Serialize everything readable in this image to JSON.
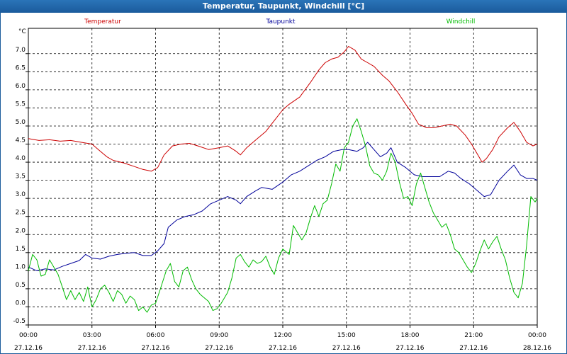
{
  "window": {
    "title": "Temperatur, Taupunkt, Windchill [°C]"
  },
  "chart_data": {
    "type": "line",
    "title": "Temperatur, Taupunkt, Windchill [°C]",
    "ylabel": "°C",
    "ylim": [
      -0.5,
      7.7
    ],
    "y_ticks": [
      "-0.5",
      "0.0",
      "0.5",
      "1.0",
      "1.5",
      "2.0",
      "2.5",
      "3.0",
      "3.5",
      "4.0",
      "4.5",
      "5.0",
      "5.5",
      "6.0",
      "6.5",
      "7.0"
    ],
    "xlim_hours": [
      0,
      24
    ],
    "x_ticks": [
      {
        "time": "00:00",
        "date": "27.12.16"
      },
      {
        "time": "03:00",
        "date": "27.12.16"
      },
      {
        "time": "06:00",
        "date": "27.12.16"
      },
      {
        "time": "09:00",
        "date": "27.12.16"
      },
      {
        "time": "12:00",
        "date": "27.12.16"
      },
      {
        "time": "15:00",
        "date": "27.12.16"
      },
      {
        "time": "18:00",
        "date": "27.12.16"
      },
      {
        "time": "21:00",
        "date": "27.12.16"
      },
      {
        "time": "00:00",
        "date": "28.12.16"
      }
    ],
    "grid": true,
    "legend_position": "top",
    "series": [
      {
        "name": "Temperatur",
        "color": "#cc0000",
        "points": [
          [
            0,
            4.65
          ],
          [
            0.5,
            4.6
          ],
          [
            1,
            4.62
          ],
          [
            1.5,
            4.58
          ],
          [
            2,
            4.6
          ],
          [
            2.5,
            4.55
          ],
          [
            3,
            4.5
          ],
          [
            3.3,
            4.35
          ],
          [
            3.7,
            4.15
          ],
          [
            4,
            4.05
          ],
          [
            4.5,
            3.98
          ],
          [
            5,
            3.88
          ],
          [
            5.4,
            3.8
          ],
          [
            5.8,
            3.75
          ],
          [
            6.1,
            3.85
          ],
          [
            6.4,
            4.2
          ],
          [
            6.8,
            4.45
          ],
          [
            7.2,
            4.5
          ],
          [
            7.6,
            4.52
          ],
          [
            8,
            4.45
          ],
          [
            8.5,
            4.35
          ],
          [
            9,
            4.4
          ],
          [
            9.4,
            4.45
          ],
          [
            9.8,
            4.3
          ],
          [
            10,
            4.2
          ],
          [
            10.3,
            4.4
          ],
          [
            10.8,
            4.65
          ],
          [
            11.2,
            4.85
          ],
          [
            11.6,
            5.15
          ],
          [
            12,
            5.45
          ],
          [
            12.3,
            5.6
          ],
          [
            12.8,
            5.8
          ],
          [
            13.3,
            6.2
          ],
          [
            13.7,
            6.55
          ],
          [
            14,
            6.75
          ],
          [
            14.3,
            6.85
          ],
          [
            14.6,
            6.9
          ],
          [
            14.9,
            7.05
          ],
          [
            15.1,
            7.2
          ],
          [
            15.4,
            7.1
          ],
          [
            15.7,
            6.85
          ],
          [
            16,
            6.75
          ],
          [
            16.3,
            6.65
          ],
          [
            16.7,
            6.4
          ],
          [
            17,
            6.25
          ],
          [
            17.4,
            5.95
          ],
          [
            17.8,
            5.6
          ],
          [
            18.1,
            5.35
          ],
          [
            18.4,
            5.05
          ],
          [
            18.8,
            4.95
          ],
          [
            19.1,
            4.95
          ],
          [
            19.5,
            5.0
          ],
          [
            19.9,
            5.05
          ],
          [
            20.2,
            5.0
          ],
          [
            20.6,
            4.75
          ],
          [
            20.9,
            4.5
          ],
          [
            21.2,
            4.2
          ],
          [
            21.4,
            4.0
          ],
          [
            21.6,
            4.1
          ],
          [
            21.9,
            4.35
          ],
          [
            22.2,
            4.7
          ],
          [
            22.6,
            4.95
          ],
          [
            22.9,
            5.1
          ],
          [
            23.2,
            4.85
          ],
          [
            23.5,
            4.55
          ],
          [
            23.8,
            4.45
          ],
          [
            24,
            4.5
          ]
        ]
      },
      {
        "name": "Taupunkt",
        "color": "#000099",
        "points": [
          [
            0,
            1.1
          ],
          [
            0.4,
            1.0
          ],
          [
            0.8,
            1.05
          ],
          [
            1.2,
            1.02
          ],
          [
            1.6,
            1.12
          ],
          [
            2,
            1.2
          ],
          [
            2.4,
            1.28
          ],
          [
            2.7,
            1.45
          ],
          [
            3,
            1.35
          ],
          [
            3.4,
            1.32
          ],
          [
            3.8,
            1.4
          ],
          [
            4.2,
            1.45
          ],
          [
            4.6,
            1.48
          ],
          [
            5,
            1.5
          ],
          [
            5.4,
            1.42
          ],
          [
            5.8,
            1.42
          ],
          [
            6.1,
            1.55
          ],
          [
            6.4,
            1.75
          ],
          [
            6.6,
            2.2
          ],
          [
            7,
            2.4
          ],
          [
            7.4,
            2.5
          ],
          [
            7.8,
            2.55
          ],
          [
            8.2,
            2.65
          ],
          [
            8.6,
            2.85
          ],
          [
            9,
            2.95
          ],
          [
            9.4,
            3.05
          ],
          [
            9.8,
            2.95
          ],
          [
            10,
            2.85
          ],
          [
            10.3,
            3.05
          ],
          [
            10.7,
            3.2
          ],
          [
            11,
            3.3
          ],
          [
            11.5,
            3.25
          ],
          [
            12,
            3.45
          ],
          [
            12.4,
            3.65
          ],
          [
            12.8,
            3.75
          ],
          [
            13.2,
            3.9
          ],
          [
            13.6,
            4.05
          ],
          [
            14,
            4.15
          ],
          [
            14.4,
            4.3
          ],
          [
            14.8,
            4.35
          ],
          [
            15.1,
            4.35
          ],
          [
            15.5,
            4.3
          ],
          [
            15.8,
            4.4
          ],
          [
            16,
            4.55
          ],
          [
            16.3,
            4.35
          ],
          [
            16.6,
            4.15
          ],
          [
            16.9,
            4.25
          ],
          [
            17.1,
            4.4
          ],
          [
            17.4,
            4.0
          ],
          [
            17.8,
            3.85
          ],
          [
            18.2,
            3.65
          ],
          [
            18.6,
            3.6
          ],
          [
            19,
            3.6
          ],
          [
            19.4,
            3.6
          ],
          [
            19.8,
            3.75
          ],
          [
            20.1,
            3.7
          ],
          [
            20.4,
            3.55
          ],
          [
            20.8,
            3.4
          ],
          [
            21.2,
            3.2
          ],
          [
            21.5,
            3.05
          ],
          [
            21.8,
            3.1
          ],
          [
            22.2,
            3.5
          ],
          [
            22.6,
            3.75
          ],
          [
            22.9,
            3.92
          ],
          [
            23.2,
            3.65
          ],
          [
            23.5,
            3.55
          ],
          [
            23.8,
            3.55
          ],
          [
            24,
            3.5
          ]
        ]
      },
      {
        "name": "Windchill",
        "color": "#00bb00",
        "points": [
          [
            0,
            1.0
          ],
          [
            0.2,
            1.45
          ],
          [
            0.4,
            1.3
          ],
          [
            0.6,
            0.85
          ],
          [
            0.8,
            0.9
          ],
          [
            1,
            1.3
          ],
          [
            1.2,
            1.1
          ],
          [
            1.4,
            0.9
          ],
          [
            1.6,
            0.55
          ],
          [
            1.8,
            0.2
          ],
          [
            2,
            0.45
          ],
          [
            2.2,
            0.2
          ],
          [
            2.4,
            0.4
          ],
          [
            2.6,
            0.15
          ],
          [
            2.8,
            0.55
          ],
          [
            3,
            0.0
          ],
          [
            3.2,
            0.2
          ],
          [
            3.4,
            0.5
          ],
          [
            3.6,
            0.6
          ],
          [
            3.8,
            0.4
          ],
          [
            4,
            0.15
          ],
          [
            4.2,
            0.45
          ],
          [
            4.4,
            0.35
          ],
          [
            4.6,
            0.1
          ],
          [
            4.8,
            0.3
          ],
          [
            5,
            0.2
          ],
          [
            5.2,
            -0.1
          ],
          [
            5.4,
            0.0
          ],
          [
            5.6,
            -0.15
          ],
          [
            5.8,
            0.05
          ],
          [
            6,
            0.1
          ],
          [
            6.2,
            0.45
          ],
          [
            6.5,
            1.0
          ],
          [
            6.7,
            1.2
          ],
          [
            6.9,
            0.7
          ],
          [
            7.1,
            0.55
          ],
          [
            7.3,
            1.0
          ],
          [
            7.5,
            1.1
          ],
          [
            7.7,
            0.75
          ],
          [
            7.9,
            0.5
          ],
          [
            8.1,
            0.35
          ],
          [
            8.3,
            0.25
          ],
          [
            8.5,
            0.15
          ],
          [
            8.7,
            -0.1
          ],
          [
            8.9,
            -0.05
          ],
          [
            9.1,
            0.1
          ],
          [
            9.4,
            0.4
          ],
          [
            9.6,
            0.8
          ],
          [
            9.8,
            1.35
          ],
          [
            10,
            1.45
          ],
          [
            10.2,
            1.25
          ],
          [
            10.4,
            1.1
          ],
          [
            10.6,
            1.3
          ],
          [
            10.8,
            1.2
          ],
          [
            11,
            1.25
          ],
          [
            11.2,
            1.4
          ],
          [
            11.4,
            1.1
          ],
          [
            11.6,
            0.9
          ],
          [
            11.8,
            1.35
          ],
          [
            12,
            1.6
          ],
          [
            12.3,
            1.45
          ],
          [
            12.5,
            2.25
          ],
          [
            12.7,
            2.05
          ],
          [
            12.9,
            1.85
          ],
          [
            13.1,
            2.05
          ],
          [
            13.3,
            2.45
          ],
          [
            13.5,
            2.8
          ],
          [
            13.7,
            2.5
          ],
          [
            13.9,
            2.85
          ],
          [
            14.1,
            2.95
          ],
          [
            14.3,
            3.4
          ],
          [
            14.5,
            3.95
          ],
          [
            14.7,
            3.75
          ],
          [
            14.9,
            4.4
          ],
          [
            15.1,
            4.55
          ],
          [
            15.3,
            5.0
          ],
          [
            15.5,
            5.2
          ],
          [
            15.7,
            4.85
          ],
          [
            15.9,
            4.45
          ],
          [
            16.1,
            3.9
          ],
          [
            16.3,
            3.7
          ],
          [
            16.5,
            3.65
          ],
          [
            16.7,
            3.5
          ],
          [
            16.9,
            3.75
          ],
          [
            17.1,
            4.25
          ],
          [
            17.3,
            4.0
          ],
          [
            17.5,
            3.45
          ],
          [
            17.7,
            3.0
          ],
          [
            17.9,
            3.05
          ],
          [
            18.1,
            2.8
          ],
          [
            18.3,
            3.4
          ],
          [
            18.5,
            3.7
          ],
          [
            18.7,
            3.3
          ],
          [
            18.9,
            2.9
          ],
          [
            19.1,
            2.6
          ],
          [
            19.3,
            2.4
          ],
          [
            19.5,
            2.2
          ],
          [
            19.7,
            2.3
          ],
          [
            19.9,
            2.0
          ],
          [
            20.1,
            1.6
          ],
          [
            20.3,
            1.5
          ],
          [
            20.5,
            1.3
          ],
          [
            20.7,
            1.1
          ],
          [
            20.9,
            0.95
          ],
          [
            21.1,
            1.2
          ],
          [
            21.3,
            1.55
          ],
          [
            21.5,
            1.85
          ],
          [
            21.7,
            1.6
          ],
          [
            21.9,
            1.8
          ],
          [
            22.1,
            1.95
          ],
          [
            22.3,
            1.6
          ],
          [
            22.5,
            1.3
          ],
          [
            22.7,
            0.8
          ],
          [
            22.9,
            0.4
          ],
          [
            23.1,
            0.25
          ],
          [
            23.3,
            0.65
          ],
          [
            23.5,
            1.7
          ],
          [
            23.7,
            3.05
          ],
          [
            23.9,
            2.9
          ],
          [
            24,
            3.0
          ]
        ]
      }
    ]
  }
}
